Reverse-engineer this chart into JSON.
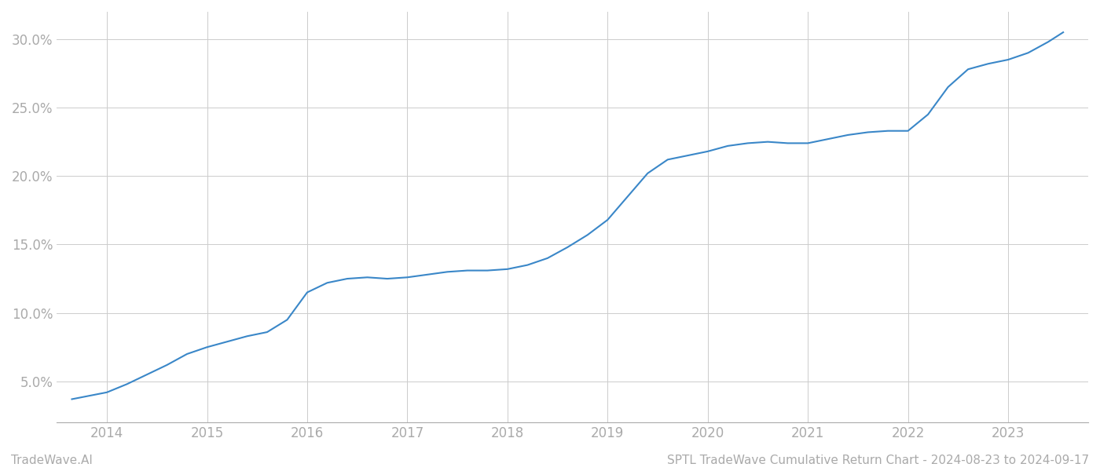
{
  "footer_left": "TradeWave.AI",
  "footer_right": "SPTL TradeWave Cumulative Return Chart - 2024-08-23 to 2024-09-17",
  "line_color": "#3a87c8",
  "background_color": "#ffffff",
  "grid_color": "#cccccc",
  "x_years": [
    2014,
    2015,
    2016,
    2017,
    2018,
    2019,
    2020,
    2021,
    2022,
    2023
  ],
  "x_data": [
    2013.65,
    2014.0,
    2014.2,
    2014.4,
    2014.6,
    2014.8,
    2015.0,
    2015.2,
    2015.4,
    2015.6,
    2015.8,
    2016.0,
    2016.2,
    2016.4,
    2016.6,
    2016.8,
    2017.0,
    2017.2,
    2017.4,
    2017.6,
    2017.8,
    2018.0,
    2018.2,
    2018.4,
    2018.6,
    2018.8,
    2019.0,
    2019.2,
    2019.4,
    2019.6,
    2019.8,
    2020.0,
    2020.2,
    2020.4,
    2020.6,
    2020.8,
    2021.0,
    2021.2,
    2021.4,
    2021.6,
    2021.8,
    2022.0,
    2022.2,
    2022.4,
    2022.6,
    2022.8,
    2023.0,
    2023.2,
    2023.4,
    2023.55
  ],
  "y_data": [
    3.7,
    4.2,
    4.8,
    5.5,
    6.2,
    7.0,
    7.5,
    7.9,
    8.3,
    8.6,
    9.5,
    11.5,
    12.2,
    12.5,
    12.6,
    12.5,
    12.6,
    12.8,
    13.0,
    13.1,
    13.1,
    13.2,
    13.5,
    14.0,
    14.8,
    15.7,
    16.8,
    18.5,
    20.2,
    21.2,
    21.5,
    21.8,
    22.2,
    22.4,
    22.5,
    22.4,
    22.4,
    22.7,
    23.0,
    23.2,
    23.3,
    23.3,
    24.5,
    26.5,
    27.8,
    28.2,
    28.5,
    29.0,
    29.8,
    30.5
  ],
  "ylim": [
    2.0,
    32.0
  ],
  "xlim": [
    2013.5,
    2023.8
  ],
  "yticks": [
    5.0,
    10.0,
    15.0,
    20.0,
    25.0,
    30.0
  ],
  "ytick_labels": [
    "5.0%",
    "10.0%",
    "15.0%",
    "20.0%",
    "25.0%",
    "30.0%"
  ],
  "line_width": 1.5,
  "footer_fontsize": 11,
  "tick_fontsize": 12
}
